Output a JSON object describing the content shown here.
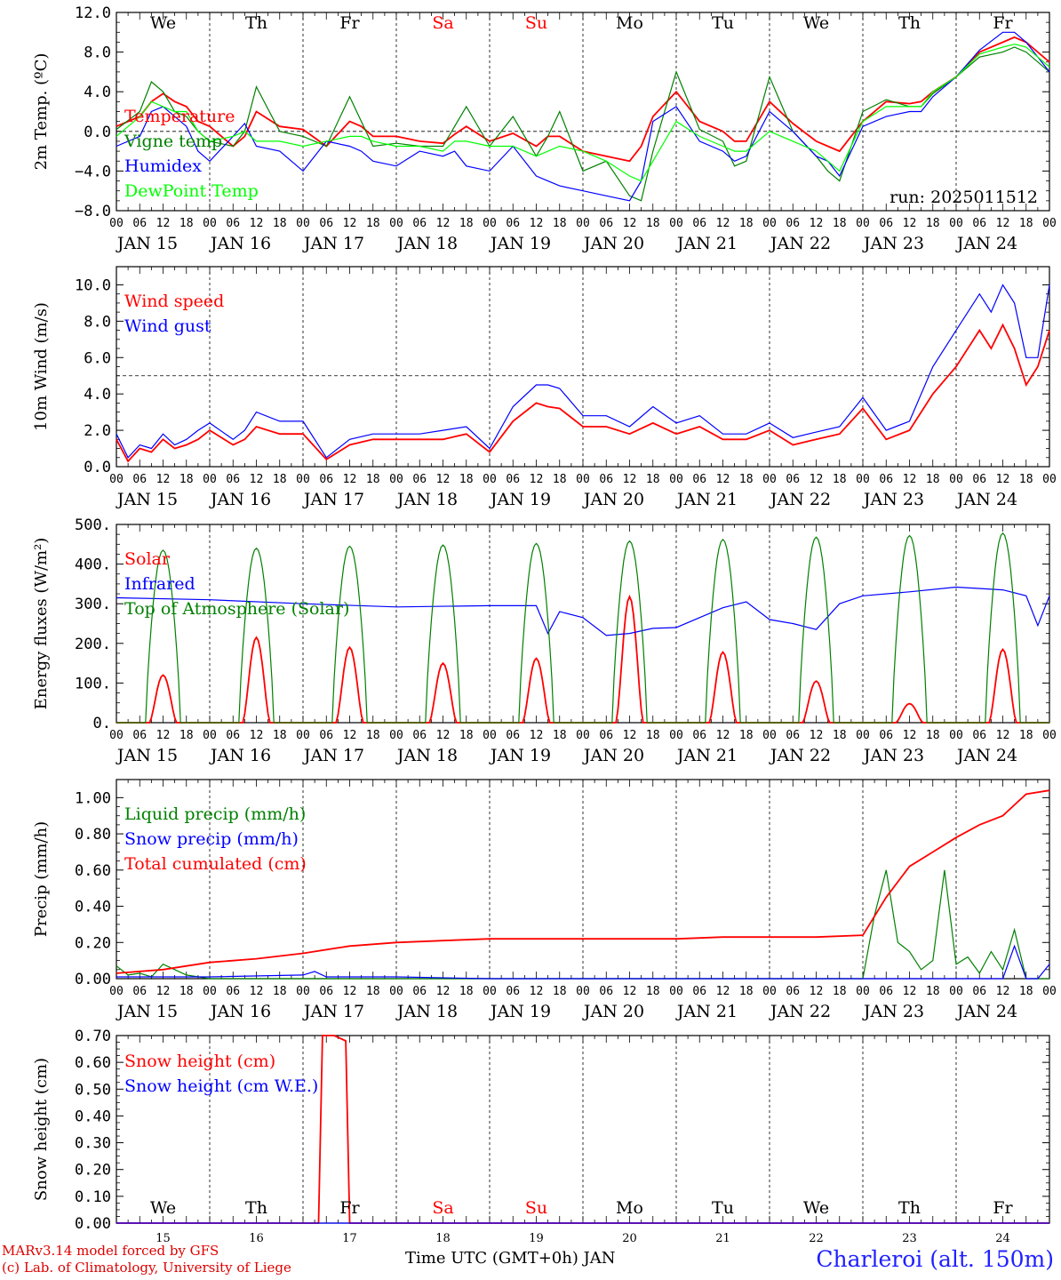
{
  "days_short": [
    "We",
    "Th",
    "Fr",
    "Sa",
    "Su",
    "Mo",
    "Tu",
    "We",
    "Th",
    "Fr"
  ],
  "day_colors": [
    "#000000",
    "#000000",
    "#000000",
    "#ff0000",
    "#ff0000",
    "#000000",
    "#000000",
    "#000000",
    "#000000",
    "#000000"
  ],
  "date_labels": [
    "JAN 15",
    "JAN 16",
    "JAN 17",
    "JAN 18",
    "JAN 19",
    "JAN 20",
    "JAN 21",
    "JAN 22",
    "JAN 23",
    "JAN 24"
  ],
  "hour_ticks": [
    "00",
    "06",
    "12",
    "18"
  ],
  "bottom_day_numbers": [
    "15",
    "16",
    "17",
    "18",
    "19",
    "20",
    "21",
    "22",
    "23",
    "24"
  ],
  "credits": [
    "MARv3.14 model forced by GFS",
    "(c) Lab. of Climatology, University of Liege"
  ],
  "station": "Charleroi (alt. 150m)",
  "x_axis_title": "Time UTC (GMT+0h) JAN",
  "run_label": "run: 2025011512",
  "chart_data": [
    {
      "type": "line",
      "ylabel": "2m Temp. (ºC)",
      "ylim": [
        -8,
        12
      ],
      "yticks": [
        "12.0",
        "8.0",
        "4.0",
        "0.0",
        "−4.0",
        "−8.0"
      ],
      "ytick_values": [
        12,
        8,
        4,
        0,
        -4,
        -8
      ],
      "ref_line": 0,
      "x_hours": [
        0,
        6,
        9,
        12,
        15,
        18,
        21,
        24,
        30,
        33,
        36,
        42,
        48,
        54,
        60,
        63,
        66,
        72,
        78,
        84,
        87,
        90,
        96,
        102,
        108,
        111,
        114,
        120,
        126,
        132,
        135,
        138,
        144,
        150,
        156,
        159,
        162,
        168,
        174,
        180,
        183,
        186,
        192,
        198,
        204,
        207,
        210,
        216,
        222,
        228,
        231,
        234,
        240
      ],
      "series": [
        {
          "name": "Temperature",
          "color": "#ff0000",
          "values": [
            0.5,
            1.5,
            3,
            3.8,
            3,
            2.5,
            1,
            0.5,
            -1.5,
            -0.5,
            2,
            0.5,
            0.2,
            -1.5,
            1,
            0.5,
            -0.5,
            -0.5,
            -1,
            -1.2,
            -0.3,
            0.5,
            -1,
            -0.2,
            -1.5,
            -0.5,
            -0.5,
            -2,
            -2.5,
            -3,
            -1.5,
            1.5,
            4,
            1,
            0,
            -1,
            -1,
            3,
            0.8,
            -1,
            -1.5,
            -2,
            1,
            3,
            2.8,
            3,
            4,
            5.5,
            8,
            9,
            9.5,
            9,
            7
          ]
        },
        {
          "name": "Vigne temp",
          "color": "#008000",
          "values": [
            0.2,
            2,
            5,
            4,
            2,
            1.5,
            0,
            -1,
            -1.5,
            0,
            4.5,
            0,
            -0.5,
            -1.5,
            3.5,
            1,
            -1.5,
            -1.2,
            -1.5,
            -1.5,
            0.5,
            2.5,
            -1.5,
            1.5,
            -2.5,
            -0.5,
            2,
            -4,
            -3,
            -6.5,
            -7,
            -2,
            6,
            0.2,
            -1,
            -3.5,
            -3,
            5.5,
            0,
            -2.5,
            -4,
            -5,
            2,
            3.2,
            2.5,
            2.5,
            3.8,
            5.5,
            7.5,
            8,
            8.5,
            8,
            6
          ]
        },
        {
          "name": "Humidex",
          "color": "#0000ff",
          "values": [
            -1.5,
            -0.5,
            2,
            2.5,
            1.5,
            0.5,
            -2,
            -3,
            -0.5,
            0.8,
            -1.5,
            -2,
            -4,
            -1,
            -1.5,
            -2,
            -3,
            -3.5,
            -2,
            -2.5,
            -2,
            -3.5,
            -4,
            -1.5,
            -4.5,
            -5,
            -5.5,
            -6,
            -6.5,
            -7,
            -5,
            1,
            2.5,
            -1,
            -2,
            -3,
            -2.5,
            2,
            0,
            -2.5,
            -3,
            -4.5,
            0.5,
            1.5,
            2,
            2,
            3.5,
            5.5,
            8.2,
            10,
            10,
            9,
            6
          ]
        },
        {
          "name": "DewPoint Temp",
          "color": "#00ff00",
          "values": [
            -0.5,
            1.5,
            3,
            2.5,
            2,
            2,
            0,
            -1,
            -0.5,
            0,
            -1,
            -1,
            -1.5,
            -1,
            -0.5,
            -0.5,
            -1,
            -1.5,
            -1.5,
            -2,
            -1,
            -1,
            -1.5,
            -1.5,
            -2.5,
            -2,
            -1.5,
            -2,
            -3,
            -4.5,
            -5,
            -3,
            1,
            -0.5,
            -1.5,
            -2,
            -2,
            0,
            -1,
            -2,
            -3,
            -4,
            1,
            2.5,
            2.5,
            2.5,
            4,
            5.5,
            7.8,
            8.5,
            8.8,
            8.5,
            6.5
          ]
        }
      ]
    },
    {
      "type": "line",
      "ylabel": "10m Wind (m/s)",
      "ylim": [
        0,
        11
      ],
      "yticks": [
        "10.0",
        "8.0",
        "6.0",
        "4.0",
        "2.0",
        "0.0"
      ],
      "ytick_values": [
        10,
        8,
        6,
        4,
        2,
        0
      ],
      "ref_line": 5,
      "x_hours": [
        0,
        3,
        6,
        9,
        12,
        15,
        18,
        21,
        24,
        30,
        33,
        36,
        42,
        48,
        54,
        60,
        66,
        72,
        78,
        84,
        90,
        96,
        102,
        108,
        111,
        114,
        120,
        126,
        132,
        138,
        144,
        150,
        156,
        162,
        168,
        174,
        180,
        186,
        192,
        198,
        204,
        210,
        216,
        222,
        225,
        228,
        231,
        234,
        237,
        240
      ],
      "series": [
        {
          "name": "Wind speed",
          "color": "#ff0000",
          "values": [
            1.5,
            0.3,
            1,
            0.8,
            1.5,
            1,
            1.2,
            1.5,
            2,
            1.2,
            1.5,
            2.2,
            1.8,
            1.8,
            0.4,
            1.2,
            1.5,
            1.5,
            1.5,
            1.5,
            1.8,
            0.8,
            2.5,
            3.5,
            3.3,
            3.2,
            2.2,
            2.2,
            1.8,
            2.4,
            1.8,
            2.2,
            1.5,
            1.5,
            2,
            1.2,
            1.5,
            1.8,
            3.2,
            1.5,
            2,
            4,
            5.5,
            7.5,
            6.5,
            7.8,
            6.5,
            4.5,
            5.5,
            7.5
          ]
        },
        {
          "name": "Wind gust",
          "color": "#0000ff",
          "values": [
            1.8,
            0.5,
            1.2,
            1,
            1.8,
            1.2,
            1.5,
            2,
            2.4,
            1.5,
            2,
            3,
            2.5,
            2.5,
            0.5,
            1.5,
            1.8,
            1.8,
            1.8,
            2,
            2.2,
            1,
            3.3,
            4.5,
            4.5,
            4.3,
            2.8,
            2.8,
            2.2,
            3.3,
            2.4,
            2.8,
            1.8,
            1.8,
            2.4,
            1.6,
            1.9,
            2.2,
            3.8,
            2,
            2.5,
            5.5,
            7.5,
            9.5,
            8.5,
            10,
            9,
            6,
            6,
            10
          ]
        }
      ]
    },
    {
      "type": "line",
      "ylabel": "Energy fluxes (W/m²)",
      "ylim": [
        0,
        500
      ],
      "yticks": [
        "500.",
        "400.",
        "300.",
        "200.",
        "100.",
        "0."
      ],
      "ytick_values": [
        500,
        400,
        300,
        200,
        100,
        0
      ],
      "series": [
        {
          "name": "Solar",
          "color": "#ff0000",
          "peaks": [
            120,
            215,
            190,
            150,
            162,
            318,
            178,
            105,
            48,
            185
          ]
        },
        {
          "name": "Infrared",
          "color": "#0000ff",
          "x_hours": [
            0,
            24,
            48,
            72,
            96,
            108,
            111,
            114,
            120,
            126,
            132,
            138,
            144,
            156,
            162,
            168,
            174,
            180,
            186,
            192,
            204,
            216,
            228,
            234,
            237,
            240
          ],
          "values": [
            315,
            310,
            300,
            292,
            295,
            295,
            225,
            280,
            265,
            220,
            225,
            238,
            240,
            290,
            305,
            260,
            250,
            235,
            300,
            320,
            330,
            342,
            335,
            320,
            245,
            320
          ]
        },
        {
          "name": "Top of Atmosphere (Solar)",
          "color": "#008000",
          "peaks": [
            435,
            440,
            445,
            448,
            452,
            458,
            462,
            468,
            472,
            478
          ]
        }
      ]
    },
    {
      "type": "line",
      "ylabel": "Precip (mm/h)",
      "ylim": [
        0,
        1.1
      ],
      "yticks": [
        "1.00",
        "0.80",
        "0.60",
        "0.40",
        "0.20",
        "0.00"
      ],
      "ytick_values": [
        1.0,
        0.8,
        0.6,
        0.4,
        0.2,
        0.0
      ],
      "series": [
        {
          "name": "Liquid precip (mm/h)",
          "color": "#008000",
          "x_hours": [
            0,
            3,
            6,
            9,
            12,
            15,
            18,
            24,
            48,
            96,
            192,
            195,
            198,
            201,
            204,
            207,
            210,
            213,
            216,
            219,
            222,
            225,
            228,
            231,
            234,
            237,
            240
          ],
          "values": [
            0.07,
            0.02,
            0.03,
            0.01,
            0.08,
            0.05,
            0.02,
            0,
            0,
            0,
            0,
            0.35,
            0.6,
            0.2,
            0.15,
            0.05,
            0.1,
            0.6,
            0.08,
            0.12,
            0.03,
            0.15,
            0.05,
            0.27,
            0,
            0,
            0
          ]
        },
        {
          "name": "Snow precip (mm/h)",
          "color": "#0000ff",
          "x_hours": [
            0,
            24,
            48,
            51,
            54,
            72,
            96,
            192,
            228,
            231,
            234,
            237,
            240
          ],
          "values": [
            0.01,
            0.01,
            0.02,
            0.04,
            0.01,
            0.01,
            0,
            0,
            0,
            0.18,
            0,
            0,
            0.08
          ]
        },
        {
          "name": "Total cumulated (cm)",
          "color": "#ff0000",
          "x_hours": [
            0,
            12,
            24,
            36,
            48,
            60,
            72,
            84,
            96,
            108,
            120,
            144,
            156,
            180,
            192,
            198,
            204,
            210,
            216,
            222,
            228,
            234,
            240
          ],
          "values": [
            0.03,
            0.05,
            0.09,
            0.11,
            0.14,
            0.18,
            0.2,
            0.21,
            0.22,
            0.22,
            0.22,
            0.22,
            0.23,
            0.23,
            0.24,
            0.45,
            0.62,
            0.7,
            0.78,
            0.85,
            0.9,
            1.02,
            1.04
          ]
        }
      ]
    },
    {
      "type": "line",
      "ylabel": "Snow height (cm)",
      "ylim": [
        0,
        0.7
      ],
      "yticks": [
        "0.70",
        "0.60",
        "0.50",
        "0.40",
        "0.30",
        "0.20",
        "0.10",
        "0.00"
      ],
      "ytick_values": [
        0.7,
        0.6,
        0.5,
        0.4,
        0.3,
        0.2,
        0.1,
        0.0
      ],
      "series": [
        {
          "name": "Snow height (cm)",
          "color": "#ff0000",
          "x_hours": [
            0,
            52,
            53,
            56,
            59,
            60,
            240
          ],
          "values": [
            0,
            0,
            0.7,
            0.7,
            0.68,
            0,
            0
          ]
        },
        {
          "name": "Snow height (cm W.E.)",
          "color": "#0000ff",
          "x_hours": [
            0,
            240
          ],
          "values": [
            0,
            0
          ]
        }
      ]
    }
  ]
}
